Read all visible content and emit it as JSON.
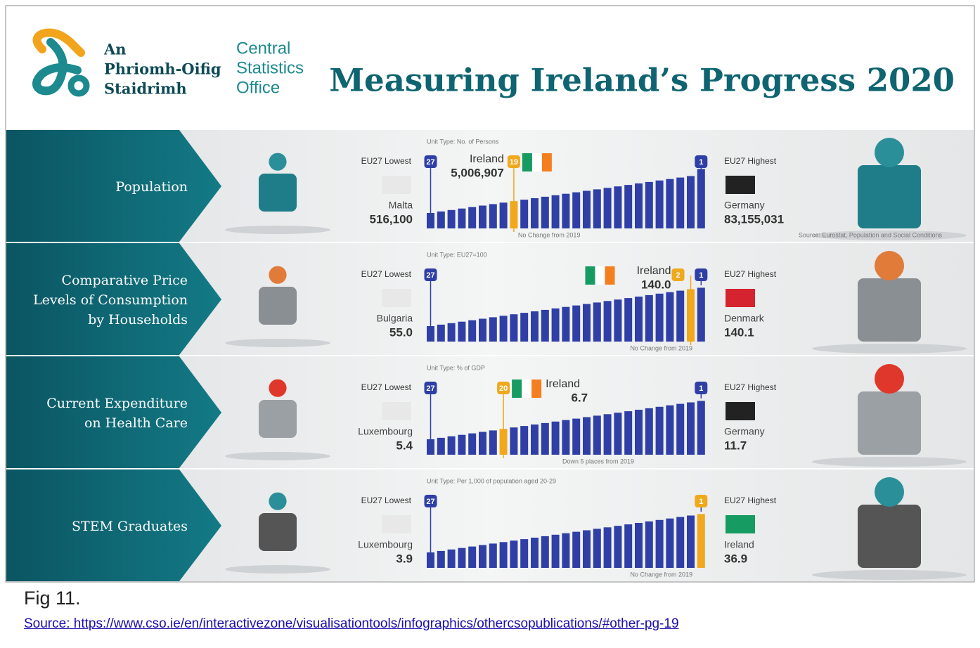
{
  "header": {
    "logo_irish": [
      "An",
      "Phriomh-Oifig",
      "Staidrimh"
    ],
    "logo_english": [
      "Central",
      "Statistics",
      "Office"
    ],
    "title": "Measuring Ireland’s Progress 2020"
  },
  "rows": [
    {
      "label": [
        "Population"
      ],
      "unit_type": "Unit Type: No. of Persons",
      "lowest_label": "EU27 Lowest",
      "lowest_rank": "27",
      "lowest_country": "Malta",
      "lowest_value": "516,100",
      "ireland_name": "Ireland",
      "ireland_value": "5,006,907",
      "ireland_rank": "19",
      "highest_label": "EU27 Highest",
      "highest_rank": "1",
      "highest_country": "Germany",
      "highest_value": "83,155,031",
      "change_note": "No Change from 2019",
      "source": "Source: Eurostat, Population and Social Conditions"
    },
    {
      "label": [
        "Comparative Price",
        "Levels of Consumption",
        "by Households"
      ],
      "unit_type": "Unit Type: EU27=100",
      "lowest_label": "EU27 Lowest",
      "lowest_rank": "27",
      "lowest_country": "Bulgaria",
      "lowest_value": "55.0",
      "ireland_name": "Ireland",
      "ireland_value": "140.0",
      "ireland_rank": "2",
      "highest_label": "EU27 Highest",
      "highest_rank": "1",
      "highest_country": "Denmark",
      "highest_value": "140.1",
      "change_note": "No Change from 2019"
    },
    {
      "label": [
        "Current Expenditure",
        "on Health Care"
      ],
      "unit_type": "Unit Type: % of GDP",
      "lowest_label": "EU27 Lowest",
      "lowest_rank": "27",
      "lowest_country": "Luxembourg",
      "lowest_value": "5.4",
      "ireland_name": "Ireland",
      "ireland_value": "6.7",
      "ireland_rank": "20",
      "highest_label": "EU27 Highest",
      "highest_rank": "1",
      "highest_country": "Germany",
      "highest_value": "11.7",
      "change_note": "Down 5 places from 2019"
    },
    {
      "label": [
        "STEM Graduates"
      ],
      "unit_type": "Unit Type: Per 1,000 of population aged 20-29",
      "lowest_label": "EU27 Lowest",
      "lowest_rank": "27",
      "lowest_country": "Luxembourg",
      "lowest_value": "3.9",
      "highest_label": "EU27 Highest",
      "highest_rank": "1",
      "highest_country": "Ireland",
      "highest_value": "36.9",
      "change_note": "No Change from 2019"
    }
  ],
  "caption": {
    "figure": "Fig 11.",
    "link": "Source: https://www.cso.ie/en/interactivezone/visualisationtools/infographics/othercsopublications/#other-pg-19"
  }
}
